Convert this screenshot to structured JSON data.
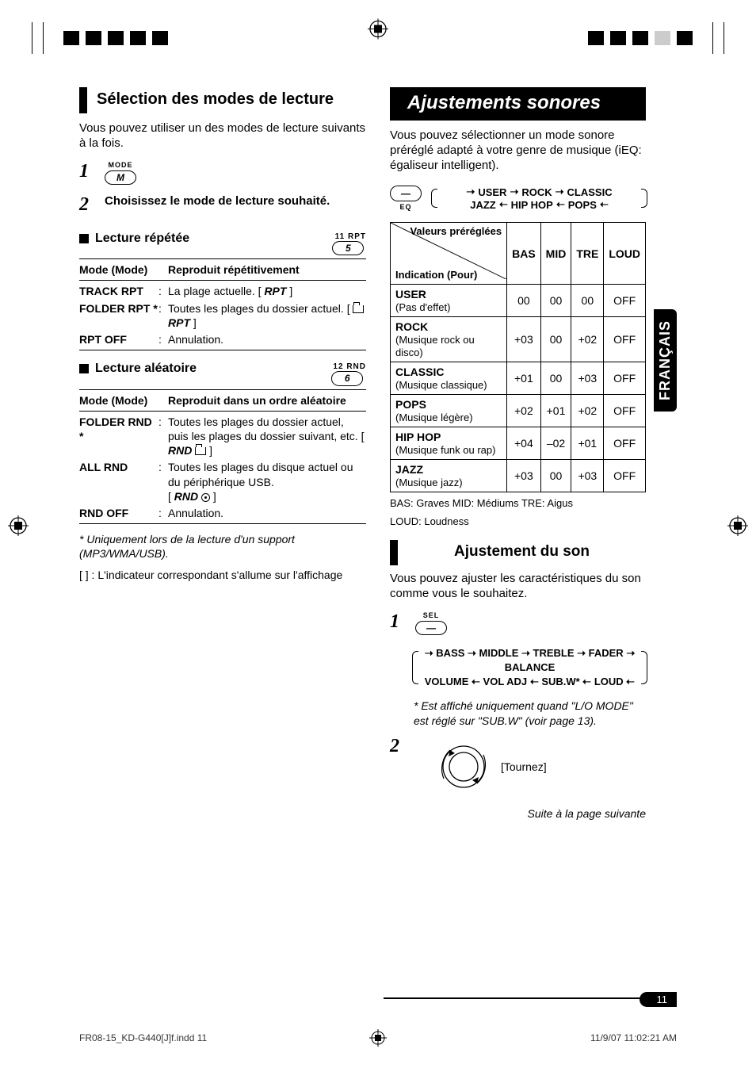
{
  "lang_tab": "FRANÇAIS",
  "page_number": "11",
  "footer_left": "FR08-15_KD-G440[J]f.indd   11",
  "footer_right": "11/9/07   11:02:21 AM",
  "left": {
    "heading": "Sélection des modes de lecture",
    "intro": "Vous pouvez utiliser un des modes de lecture suivants à la fois.",
    "step1_btn_top": "MODE",
    "step1_btn_label": "M",
    "step2_text": "Choisissez le mode de lecture souhaité.",
    "repeat_title": "Lecture répétée",
    "repeat_ind": "11 RPT",
    "repeat_btn": "5",
    "repeat_header_l": "Mode (Mode)",
    "repeat_header_r": "Reproduit répétitivement",
    "repeat_rows": [
      {
        "k": "TRACK RPT",
        "v": "La plage actuelle.",
        "ind": "RPT"
      },
      {
        "k": "FOLDER RPT *",
        "v": "Toutes les plages du dossier actuel.",
        "ind_prefix": "folder",
        "ind": "RPT"
      },
      {
        "k": "RPT OFF",
        "v": "Annulation."
      }
    ],
    "random_title": "Lecture aléatoire",
    "random_ind": "12 RND",
    "random_btn": "6",
    "random_header_l": "Mode (Mode)",
    "random_header_r": "Reproduit dans un ordre aléatoire",
    "random_rows": [
      {
        "k": "FOLDER RND *",
        "v": "Toutes les plages du dossier actuel, puis les plages du dossier suivant, etc.",
        "ind": "RND",
        "icon": "folder"
      },
      {
        "k": "ALL RND",
        "v": "Toutes les plages du disque actuel ou du périphérique USB.",
        "ind": "RND",
        "icon": "disc"
      },
      {
        "k": "RND OFF",
        "v": "Annulation."
      }
    ],
    "note_star": "*  Uniquement lors de la lecture d'un support (MP3/WMA/USB).",
    "note_bracket": "[  ]  :  L'indicateur correspondant s'allume sur l'affichage"
  },
  "right": {
    "heading": "Ajustements sonores",
    "intro": "Vous pouvez sélectionner un mode sonore préréglé adapté à votre genre de musique (iEQ: égaliseur intelligent).",
    "eq_btn_top": "—",
    "eq_btn_bottom": "EQ",
    "cycle_top": [
      "USER",
      "ROCK",
      "CLASSIC"
    ],
    "cycle_bot": [
      "JAZZ",
      "HIP HOP",
      "POPS"
    ],
    "table": {
      "diag_top": "Valeurs préréglées",
      "diag_bot": "Indication (Pour)",
      "cols": [
        "BAS",
        "MID",
        "TRE",
        "LOUD"
      ],
      "rows": [
        {
          "name": "USER",
          "desc": "(Pas d'effet)",
          "v": [
            "00",
            "00",
            "00",
            "OFF"
          ]
        },
        {
          "name": "ROCK",
          "desc": "(Musique rock ou disco)",
          "v": [
            "+03",
            "00",
            "+02",
            "OFF"
          ]
        },
        {
          "name": "CLASSIC",
          "desc": "(Musique classique)",
          "v": [
            "+01",
            "00",
            "+03",
            "OFF"
          ]
        },
        {
          "name": "POPS",
          "desc": "(Musique légère)",
          "v": [
            "+02",
            "+01",
            "+02",
            "OFF"
          ]
        },
        {
          "name": "HIP HOP",
          "desc": "(Musique funk ou rap)",
          "v": [
            "+04",
            "–02",
            "+01",
            "OFF"
          ]
        },
        {
          "name": "JAZZ",
          "desc": "(Musique jazz)",
          "v": [
            "+03",
            "00",
            "+03",
            "OFF"
          ]
        }
      ]
    },
    "legend1": "BAS: Graves   MID: Médiums   TRE: Aigus",
    "legend2": "LOUD: Loudness",
    "sub_heading": "Ajustement du son",
    "sub_intro": "Vous pouvez ajuster les caractéristiques du son comme vous le souhaitez.",
    "sel_btn_top": "SEL",
    "flow_top": [
      "BASS",
      "MIDDLE",
      "TREBLE",
      "FADER",
      "BALANCE"
    ],
    "flow_bot": [
      "VOLUME",
      "VOL ADJ",
      "SUB.W*",
      "LOUD"
    ],
    "flow_note": "*  Est affiché uniquement quand \"L/O MODE\" est réglé sur \"SUB.W\" (voir page 13).",
    "turn_label": "[Tournez]",
    "continued": "Suite à la page suivante"
  }
}
